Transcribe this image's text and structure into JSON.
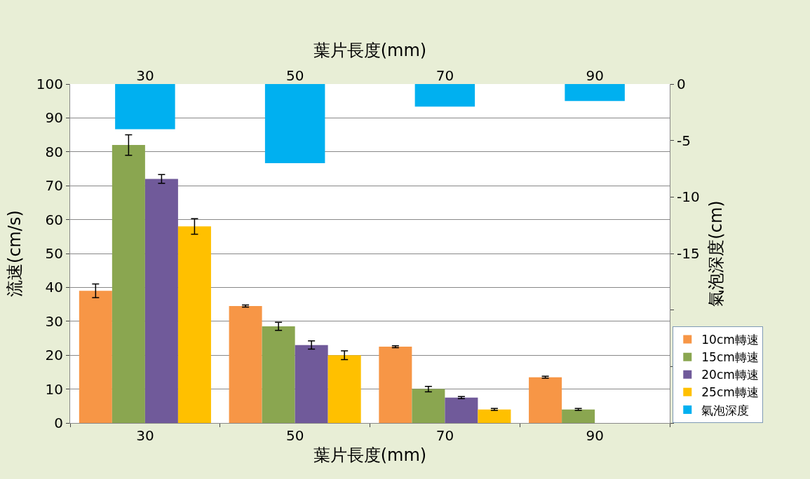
{
  "chart_data": {
    "type": "bar",
    "categories": [
      "30",
      "50",
      "70",
      "90"
    ],
    "xlabel": "葉片長度(mm)",
    "x2label": "葉片長度(mm)",
    "ylabel": "流速(cm/s)",
    "y2label": "氣泡深度(cm)",
    "ylim": [
      0,
      100
    ],
    "yticks": [
      0,
      10,
      20,
      30,
      40,
      50,
      60,
      70,
      80,
      90,
      100
    ],
    "y2lim": [
      -30,
      0
    ],
    "y2ticks": [
      0,
      -5,
      -10,
      -15,
      {
        "value": -20,
        "label": null
      },
      {
        "value": -25,
        "label": null
      },
      {
        "value": -30,
        "label": null
      }
    ],
    "grid": "y",
    "legend": "bottom right",
    "series": [
      {
        "name": "10cm轉速",
        "color": "#f79646",
        "values": [
          39,
          34.5,
          22.5,
          13.5
        ],
        "errors": [
          2,
          0.3,
          0.3,
          0.3
        ]
      },
      {
        "name": "15cm轉速",
        "color": "#8aa650",
        "values": [
          82,
          28.5,
          10,
          4
        ],
        "errors": [
          3,
          1.2,
          0.8,
          0.3
        ]
      },
      {
        "name": "20cm轉速",
        "color": "#705a9a",
        "values": [
          72,
          23,
          7.5,
          null
        ],
        "errors": [
          1.3,
          1.2,
          0.3,
          null
        ]
      },
      {
        "name": "25cm轉速",
        "color": "#ffc000",
        "values": [
          58,
          20,
          4,
          null
        ],
        "errors": [
          2.3,
          1.3,
          0.3,
          null
        ]
      },
      {
        "name": "氣泡深度",
        "color": "#00b0f0",
        "values": [
          -4,
          -7,
          -2,
          -1.5
        ],
        "axis": "y2"
      }
    ]
  }
}
